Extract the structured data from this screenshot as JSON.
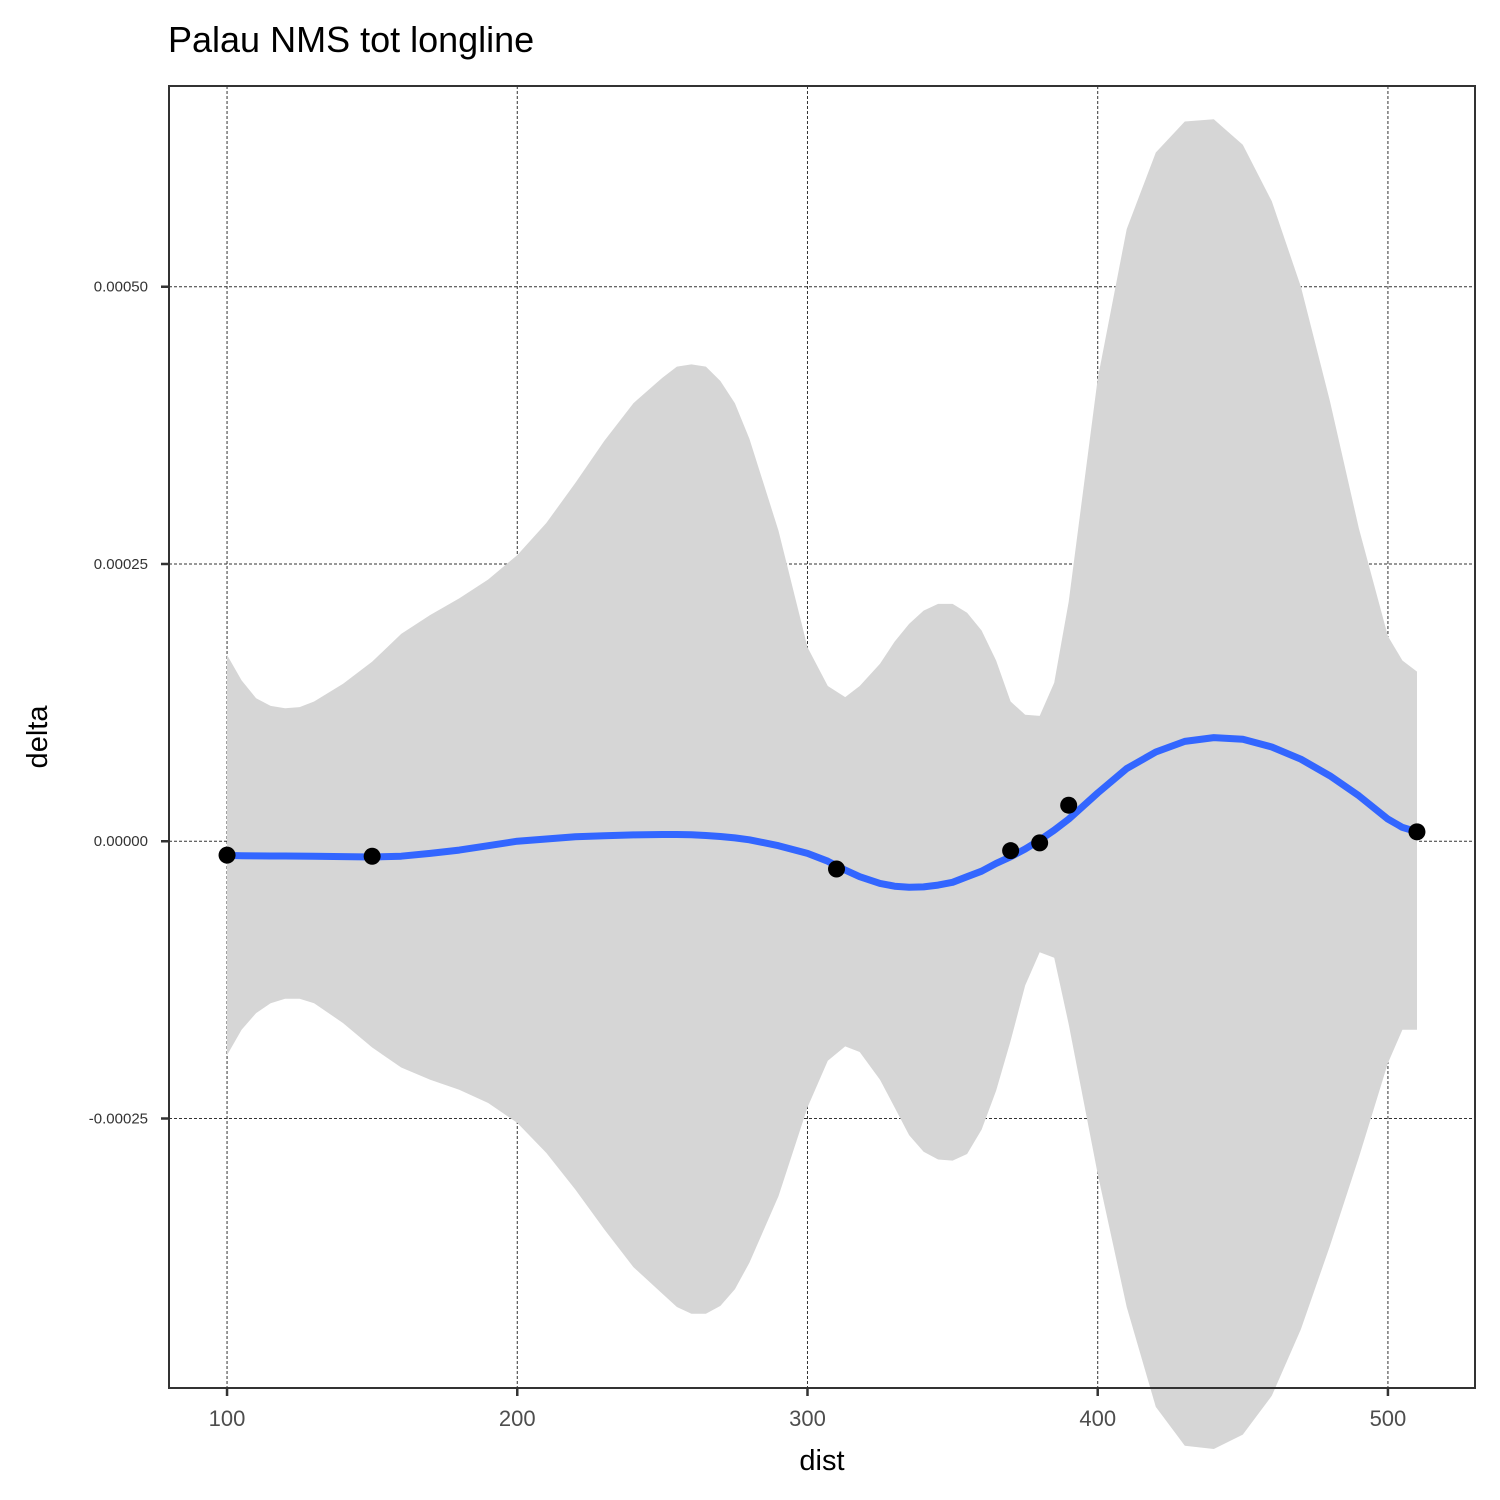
{
  "chart_data": {
    "type": "scatter",
    "title": "Palau NMS tot longline",
    "xlabel": "dist",
    "ylabel": "delta",
    "xlim": [
      80,
      530
    ],
    "ylim": [
      -0.000493,
      0.000681
    ],
    "x_ticks": [
      100,
      200,
      300,
      400,
      500
    ],
    "x_tick_labels": [
      "100",
      "200",
      "300",
      "400",
      "500"
    ],
    "y_ticks": [
      -0.00025,
      0,
      0.00025,
      0.0005
    ],
    "y_tick_labels": [
      "-0.00025",
      "0.00000",
      "0.00025",
      "0.00050"
    ],
    "grid": true,
    "colors": {
      "line": "#3366ff",
      "band": "#d6d6d6",
      "points": "#000000"
    },
    "points": {
      "x": [
        100,
        150,
        310,
        370,
        380,
        390,
        510
      ],
      "y": [
        -1.25e-05,
        -1.35e-05,
        -2.5e-05,
        -8.5e-06,
        -1.5e-06,
        3.25e-05,
        8.5e-06
      ]
    },
    "smooth": {
      "x": [
        100,
        105,
        110,
        115,
        120,
        125,
        130,
        140,
        150,
        160,
        170,
        180,
        190,
        200,
        210,
        220,
        230,
        240,
        250,
        255,
        260,
        265,
        270,
        275,
        280,
        290,
        300,
        307,
        313,
        318,
        325,
        330,
        335,
        340,
        345,
        350,
        355,
        360,
        365,
        370,
        375,
        380,
        385,
        390,
        400,
        410,
        420,
        430,
        440,
        450,
        460,
        470,
        480,
        490,
        500,
        505,
        510
      ],
      "y": [
        -1.28e-05,
        -1.3e-05,
        -1.32e-05,
        -1.33e-05,
        -1.33e-05,
        -1.34e-05,
        -1.35e-05,
        -1.38e-05,
        -1.42e-05,
        -1.35e-05,
        -1.1e-05,
        -8e-06,
        -4e-06,
        0.0,
        2e-06,
        4e-06,
        5e-06,
        5.7e-06,
        6.1e-06,
        6.1e-06,
        5.9e-06,
        5.2e-06,
        4.3e-06,
        3e-06,
        1.3e-06,
        -4e-06,
        -1.1e-05,
        -1.8e-05,
        -2.6e-05,
        -3.2e-05,
        -3.8e-05,
        -4.05e-05,
        -4.15e-05,
        -4.12e-05,
        -3.95e-05,
        -3.7e-05,
        -3.2e-05,
        -2.7e-05,
        -2e-05,
        -1.4e-05,
        -7e-06,
        1e-06,
        1e-05,
        2e-05,
        4.35e-05,
        6.55e-05,
        8.05e-05,
        9e-05,
        9.35e-05,
        9.2e-05,
        8.5e-05,
        7.4e-05,
        5.9e-05,
        4.1e-05,
        2e-05,
        1.25e-05,
        8.5e-06
      ],
      "ci_lower": [
        -0.000193,
        -0.00017,
        -0.000155,
        -0.000146,
        -0.000142,
        -0.000142,
        -0.000146,
        -0.000164,
        -0.000186,
        -0.000204,
        -0.000215,
        -0.000224,
        -0.000236,
        -0.000254,
        -0.000281,
        -0.000314,
        -0.00035,
        -0.000384,
        -0.000408,
        -0.00042,
        -0.000426,
        -0.000426,
        -0.000419,
        -0.000404,
        -0.00038,
        -0.00032,
        -0.00024,
        -0.000198,
        -0.000185,
        -0.00019,
        -0.000215,
        -0.00024,
        -0.000265,
        -0.00028,
        -0.000287,
        -0.000288,
        -0.000282,
        -0.00026,
        -0.000225,
        -0.00018,
        -0.00013,
        -0.0001,
        -0.000105,
        -0.000165,
        -0.0003,
        -0.00042,
        -0.00051,
        -0.000545,
        -0.000548,
        -0.000535,
        -0.0005,
        -0.00044,
        -0.000365,
        -0.000285,
        -0.0002,
        -0.00017,
        -0.00017
      ],
      "ci_upper": [
        0.000168,
        0.000145,
        0.000129,
        0.000122,
        0.00012,
        0.000121,
        0.000126,
        0.000142,
        0.000162,
        0.000187,
        0.000204,
        0.000219,
        0.000236,
        0.000258,
        0.000287,
        0.000323,
        0.000361,
        0.000395,
        0.000418,
        0.000428,
        0.00043,
        0.000428,
        0.000415,
        0.000395,
        0.000363,
        0.00028,
        0.000175,
        0.00014,
        0.00013,
        0.00014,
        0.00016,
        0.00018,
        0.000196,
        0.000208,
        0.000214,
        0.000214,
        0.000206,
        0.00019,
        0.000163,
        0.000126,
        0.000114,
        0.000113,
        0.000143,
        0.000216,
        0.000417,
        0.000552,
        0.000621,
        0.000649,
        0.000651,
        0.000628,
        0.000577,
        0.0005,
        0.000397,
        0.000282,
        0.000185,
        0.000163,
        0.000153
      ]
    }
  }
}
